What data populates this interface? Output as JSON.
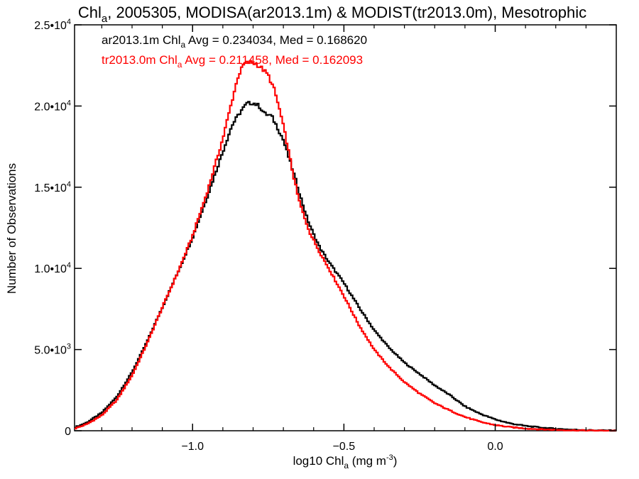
{
  "chart_data": {
    "type": "line",
    "title": {
      "main": "Chl",
      "sub": "a",
      "rest": ", 2005305, MODISA(ar2013.1m) & MODIST(tr2013.0m), Mesotrophic"
    },
    "xlabel": {
      "pre": "log10 Chl",
      "sub": "a",
      "post": " (mg m",
      "sup": "-3",
      "end": ")"
    },
    "ylabel": "Number of Observations",
    "xlim": [
      -1.39,
      0.4
    ],
    "ylim": [
      0,
      25000
    ],
    "x_ticks": [
      {
        "value": -1.0,
        "label": "−1.0"
      },
      {
        "value": -0.5,
        "label": "−0.5"
      },
      {
        "value": 0.0,
        "label": "0.0"
      }
    ],
    "y_ticks": [
      {
        "value": 0,
        "mant": "0",
        "exp": ""
      },
      {
        "value": 5000,
        "mant": "5.0•10",
        "exp": "3"
      },
      {
        "value": 10000,
        "mant": "1.0•10",
        "exp": "4"
      },
      {
        "value": 15000,
        "mant": "1.5•10",
        "exp": "4"
      },
      {
        "value": 20000,
        "mant": "2.0•10",
        "exp": "4"
      },
      {
        "value": 25000,
        "mant": "2.5•10",
        "exp": "4"
      }
    ],
    "annotations": [
      {
        "pre": "ar2013.1m Chl",
        "sub": "a",
        "post": " Avg = 0.234034, Med = 0.168620",
        "color": "#000000"
      },
      {
        "pre": "tr2013.0m Chl",
        "sub": "a",
        "post": " Avg = 0.211458, Med = 0.162093",
        "color": "#ff0000"
      }
    ],
    "series": [
      {
        "color": "#000000",
        "points": [
          [
            -1.39,
            200
          ],
          [
            -1.35,
            500
          ],
          [
            -1.3,
            1100
          ],
          [
            -1.25,
            2100
          ],
          [
            -1.2,
            3600
          ],
          [
            -1.15,
            5500
          ],
          [
            -1.1,
            7600
          ],
          [
            -1.05,
            9700
          ],
          [
            -1.0,
            11900
          ],
          [
            -0.95,
            14500
          ],
          [
            -0.9,
            17200
          ],
          [
            -0.87,
            18800
          ],
          [
            -0.84,
            19700
          ],
          [
            -0.82,
            20150
          ],
          [
            -0.8,
            20200
          ],
          [
            -0.78,
            20000
          ],
          [
            -0.76,
            19500
          ],
          [
            -0.74,
            19400
          ],
          [
            -0.72,
            18700
          ],
          [
            -0.7,
            17900
          ],
          [
            -0.68,
            16700
          ],
          [
            -0.66,
            15500
          ],
          [
            -0.64,
            14200
          ],
          [
            -0.62,
            13000
          ],
          [
            -0.6,
            12100
          ],
          [
            -0.58,
            11300
          ],
          [
            -0.55,
            10400
          ],
          [
            -0.5,
            9100
          ],
          [
            -0.45,
            7600
          ],
          [
            -0.4,
            6200
          ],
          [
            -0.35,
            5100
          ],
          [
            -0.3,
            4200
          ],
          [
            -0.25,
            3500
          ],
          [
            -0.2,
            2800
          ],
          [
            -0.15,
            2200
          ],
          [
            -0.1,
            1500
          ],
          [
            -0.05,
            1050
          ],
          [
            0.0,
            700
          ],
          [
            0.05,
            450
          ],
          [
            0.1,
            300
          ],
          [
            0.15,
            200
          ],
          [
            0.2,
            120
          ],
          [
            0.25,
            70
          ],
          [
            0.3,
            40
          ],
          [
            0.35,
            20
          ],
          [
            0.4,
            10
          ]
        ]
      },
      {
        "color": "#ff0000",
        "points": [
          [
            -1.39,
            130
          ],
          [
            -1.35,
            400
          ],
          [
            -1.3,
            950
          ],
          [
            -1.25,
            1900
          ],
          [
            -1.2,
            3400
          ],
          [
            -1.15,
            5400
          ],
          [
            -1.1,
            7600
          ],
          [
            -1.05,
            9700
          ],
          [
            -1.0,
            12000
          ],
          [
            -0.95,
            14800
          ],
          [
            -0.9,
            18000
          ],
          [
            -0.87,
            20300
          ],
          [
            -0.85,
            21800
          ],
          [
            -0.83,
            22600
          ],
          [
            -0.81,
            22700
          ],
          [
            -0.79,
            22600
          ],
          [
            -0.77,
            22300
          ],
          [
            -0.75,
            21900
          ],
          [
            -0.73,
            21000
          ],
          [
            -0.71,
            19600
          ],
          [
            -0.69,
            17900
          ],
          [
            -0.67,
            16000
          ],
          [
            -0.65,
            14300
          ],
          [
            -0.63,
            13100
          ],
          [
            -0.61,
            12100
          ],
          [
            -0.58,
            11000
          ],
          [
            -0.55,
            10000
          ],
          [
            -0.5,
            8300
          ],
          [
            -0.45,
            6500
          ],
          [
            -0.4,
            5000
          ],
          [
            -0.35,
            3900
          ],
          [
            -0.3,
            3000
          ],
          [
            -0.25,
            2300
          ],
          [
            -0.2,
            1700
          ],
          [
            -0.15,
            1250
          ],
          [
            -0.1,
            850
          ],
          [
            -0.05,
            550
          ],
          [
            0.0,
            350
          ],
          [
            0.05,
            220
          ],
          [
            0.1,
            140
          ],
          [
            0.15,
            90
          ],
          [
            0.2,
            55
          ],
          [
            0.25,
            30
          ],
          [
            0.3,
            15
          ],
          [
            0.35,
            8
          ],
          [
            0.4,
            4
          ]
        ]
      }
    ]
  }
}
